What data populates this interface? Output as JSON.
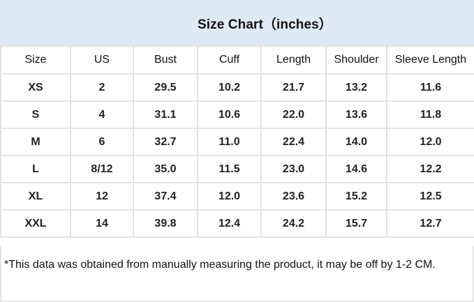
{
  "title": "Size Chart（inches）",
  "colors": {
    "header_band": "#deeaf6",
    "grid": "#e3e3e3"
  },
  "table": {
    "headers": [
      "Size",
      "US",
      "Bust",
      "Cuff",
      "Length",
      "Shoulder",
      "Sleeve Length"
    ],
    "rows": [
      [
        "XS",
        "2",
        "29.5",
        "10.2",
        "21.7",
        "13.2",
        "11.6"
      ],
      [
        "S",
        "4",
        "31.1",
        "10.6",
        "22.0",
        "13.6",
        "11.8"
      ],
      [
        "M",
        "6",
        "32.7",
        "11.0",
        "22.4",
        "14.0",
        "12.0"
      ],
      [
        "L",
        "8/12",
        "35.0",
        "11.5",
        "23.0",
        "14.6",
        "12.2"
      ],
      [
        "XL",
        "12",
        "37.4",
        "12.0",
        "23.6",
        "15.2",
        "12.5"
      ],
      [
        "XXL",
        "14",
        "39.8",
        "12.4",
        "24.2",
        "15.7",
        "12.7"
      ]
    ]
  },
  "note": "*This data was obtained from manually measuring the product, it may be off by 1-2 CM."
}
